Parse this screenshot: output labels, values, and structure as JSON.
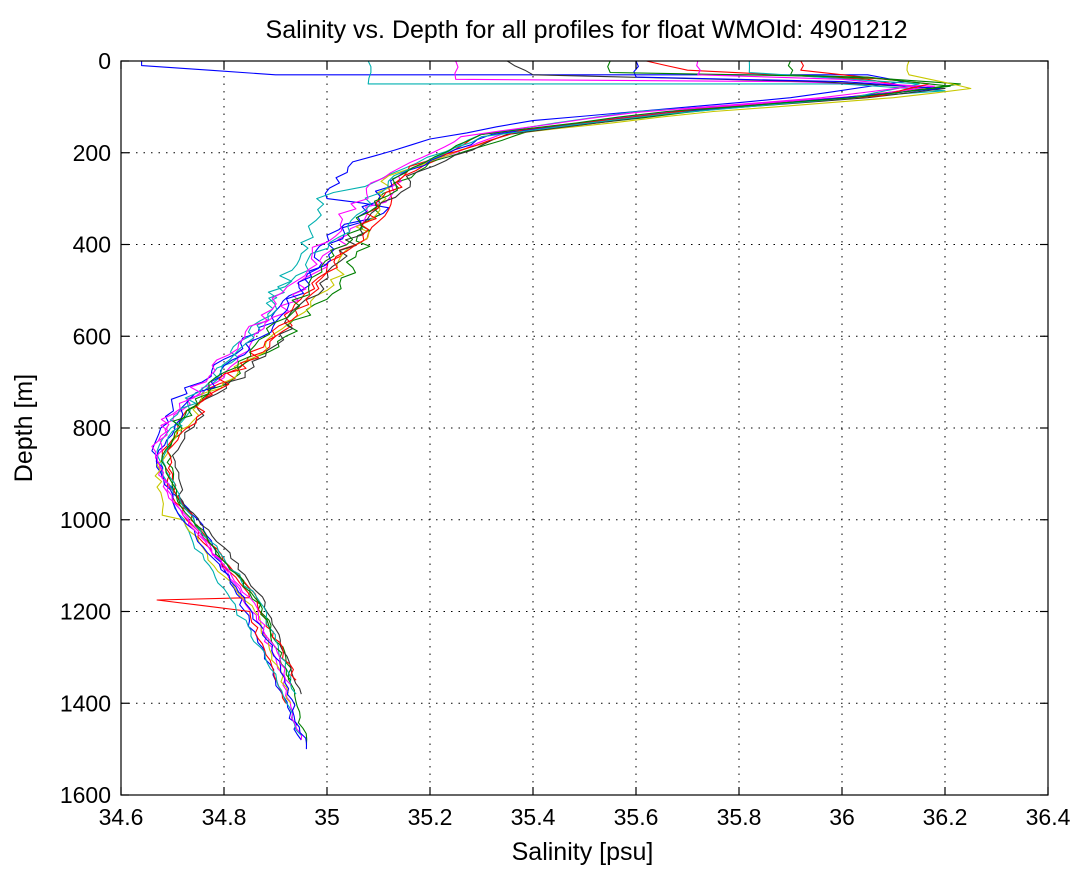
{
  "chart_data": {
    "type": "line",
    "title": "Salinity vs. Depth for all profiles for float WMOId: 4901212",
    "xlabel": "Salinity [psu]",
    "ylabel": "Depth [m]",
    "xlim": [
      34.6,
      36.4
    ],
    "ylim": [
      1600,
      0
    ],
    "y_reversed": true,
    "grid": true,
    "legend": "none",
    "xticks": [
      34.6,
      34.8,
      35,
      35.2,
      35.4,
      35.6,
      35.8,
      36,
      36.2,
      36.4
    ],
    "xtick_labels": [
      "34.6",
      "34.8",
      "35",
      "35.2",
      "35.4",
      "35.6",
      "35.8",
      "36",
      "36.2",
      "36.4"
    ],
    "yticks": [
      0,
      200,
      400,
      600,
      800,
      1000,
      1200,
      1400,
      1600
    ],
    "ytick_labels": [
      "0",
      "200",
      "400",
      "600",
      "800",
      "1000",
      "1200",
      "1400",
      "1600"
    ],
    "series": [
      {
        "color": "#0000ff",
        "x": [
          34.64,
          34.64,
          34.9,
          36.05,
          36.12,
          35.9,
          35.6,
          35.4,
          35.2,
          35.05,
          35.0,
          35.12,
          35.0,
          34.95,
          34.8,
          34.7,
          34.66,
          34.69,
          34.75,
          34.82,
          34.9,
          34.95
        ],
        "y": [
          0,
          10,
          30,
          30,
          45,
          80,
          110,
          130,
          170,
          220,
          300,
          320,
          380,
          500,
          650,
          750,
          850,
          920,
          1000,
          1150,
          1350,
          1480
        ]
      },
      {
        "color": "#ff0000",
        "x": [
          35.62,
          35.7,
          36.05,
          36.15,
          36.0,
          35.7,
          35.3,
          35.15,
          35.1,
          35.0,
          34.9,
          34.75,
          34.68,
          34.7,
          34.76,
          34.84,
          34.85,
          34.67,
          34.85,
          34.92
        ],
        "y": [
          0,
          20,
          40,
          60,
          80,
          110,
          160,
          250,
          350,
          450,
          600,
          750,
          850,
          950,
          1050,
          1150,
          1170,
          1175,
          1200,
          1400
        ]
      },
      {
        "color": "#00b0b0",
        "x": [
          35.08,
          35.08,
          36.0,
          36.2,
          36.0,
          35.6,
          35.3,
          35.1,
          34.98,
          34.95,
          34.85,
          34.73,
          34.67,
          34.7,
          34.74,
          34.8,
          34.88,
          34.95
        ],
        "y": [
          0,
          50,
          50,
          65,
          80,
          110,
          160,
          260,
          300,
          420,
          600,
          750,
          850,
          950,
          1050,
          1150,
          1300,
          1470
        ]
      },
      {
        "color": "#008000",
        "x": [
          35.9,
          35.9,
          36.1,
          36.23,
          36.1,
          35.8,
          35.4,
          35.2,
          35.1,
          35.05,
          34.92,
          34.75,
          34.69,
          34.71,
          34.77,
          34.85,
          34.92,
          34.96
        ],
        "y": [
          0,
          30,
          40,
          50,
          70,
          100,
          150,
          220,
          300,
          450,
          600,
          750,
          850,
          950,
          1050,
          1150,
          1300,
          1490
        ]
      },
      {
        "color": "#ff00ff",
        "x": [
          35.25,
          35.25,
          35.9,
          36.18,
          36.05,
          35.7,
          35.35,
          35.15,
          35.08,
          34.98,
          34.85,
          34.72,
          34.66,
          34.69,
          34.76,
          34.83,
          34.9,
          34.95
        ],
        "y": [
          0,
          40,
          45,
          55,
          75,
          105,
          155,
          240,
          330,
          460,
          620,
          760,
          840,
          940,
          1040,
          1150,
          1300,
          1480
        ]
      },
      {
        "color": "#c8c800",
        "x": [
          36.13,
          36.13,
          36.25,
          36.1,
          35.75,
          35.35,
          35.12,
          35.08,
          35.0,
          34.88,
          34.74,
          34.67,
          34.68,
          34.72,
          34.78,
          34.86,
          34.93
        ],
        "y": [
          0,
          30,
          60,
          80,
          110,
          160,
          250,
          350,
          500,
          620,
          760,
          880,
          990,
          1000,
          1100,
          1200,
          1400
        ]
      },
      {
        "color": "#333333",
        "x": [
          35.35,
          35.4,
          35.95,
          36.2,
          36.05,
          35.7,
          35.35,
          35.18,
          35.1,
          35.0,
          34.9,
          34.75,
          34.7,
          34.72,
          34.8,
          34.88,
          34.95
        ],
        "y": [
          0,
          30,
          45,
          60,
          80,
          110,
          160,
          240,
          320,
          460,
          620,
          760,
          860,
          960,
          1060,
          1180,
          1380
        ]
      },
      {
        "color": "#0000ff",
        "x": [
          35.6,
          35.6,
          36.0,
          36.19,
          36.0,
          35.68,
          35.32,
          35.14,
          35.06,
          34.97,
          34.84,
          34.72,
          34.67,
          34.7,
          34.76,
          34.84,
          34.91,
          34.96
        ],
        "y": [
          0,
          35,
          45,
          60,
          80,
          110,
          160,
          250,
          340,
          470,
          640,
          770,
          860,
          960,
          1060,
          1170,
          1320,
          1500
        ]
      },
      {
        "color": "#ff0000",
        "x": [
          35.92,
          35.92,
          36.17,
          36.08,
          35.72,
          35.38,
          35.16,
          35.1,
          35.02,
          34.9,
          34.76,
          34.69,
          34.71,
          34.77,
          34.85,
          34.94
        ],
        "y": [
          0,
          20,
          50,
          75,
          105,
          150,
          230,
          320,
          450,
          600,
          740,
          850,
          950,
          1050,
          1150,
          1350
        ]
      },
      {
        "color": "#00b0b0",
        "x": [
          35.82,
          35.82,
          36.15,
          36.02,
          35.66,
          35.3,
          35.13,
          35.04,
          34.93,
          34.82,
          34.71,
          34.68,
          34.72,
          34.79,
          34.87,
          34.94
        ],
        "y": [
          0,
          25,
          50,
          80,
          115,
          165,
          250,
          360,
          480,
          640,
          770,
          870,
          970,
          1070,
          1180,
          1380
        ]
      },
      {
        "color": "#008000",
        "x": [
          35.55,
          35.55,
          36.05,
          36.21,
          36.02,
          35.66,
          35.3,
          35.15,
          35.08,
          34.99,
          34.86,
          34.73,
          34.68,
          34.71,
          34.78,
          34.86,
          34.93
        ],
        "y": [
          0,
          25,
          35,
          55,
          80,
          110,
          160,
          245,
          330,
          460,
          620,
          760,
          860,
          960,
          1060,
          1170,
          1350
        ]
      },
      {
        "color": "#ff00ff",
        "x": [
          35.72,
          35.72,
          36.0,
          36.14,
          35.96,
          35.6,
          35.26,
          35.11,
          35.03,
          34.94,
          34.81,
          34.7,
          34.67,
          34.7,
          34.77,
          34.85,
          34.93
        ],
        "y": [
          0,
          30,
          40,
          55,
          80,
          112,
          165,
          255,
          345,
          480,
          640,
          770,
          860,
          960,
          1060,
          1170,
          1360
        ]
      }
    ]
  }
}
